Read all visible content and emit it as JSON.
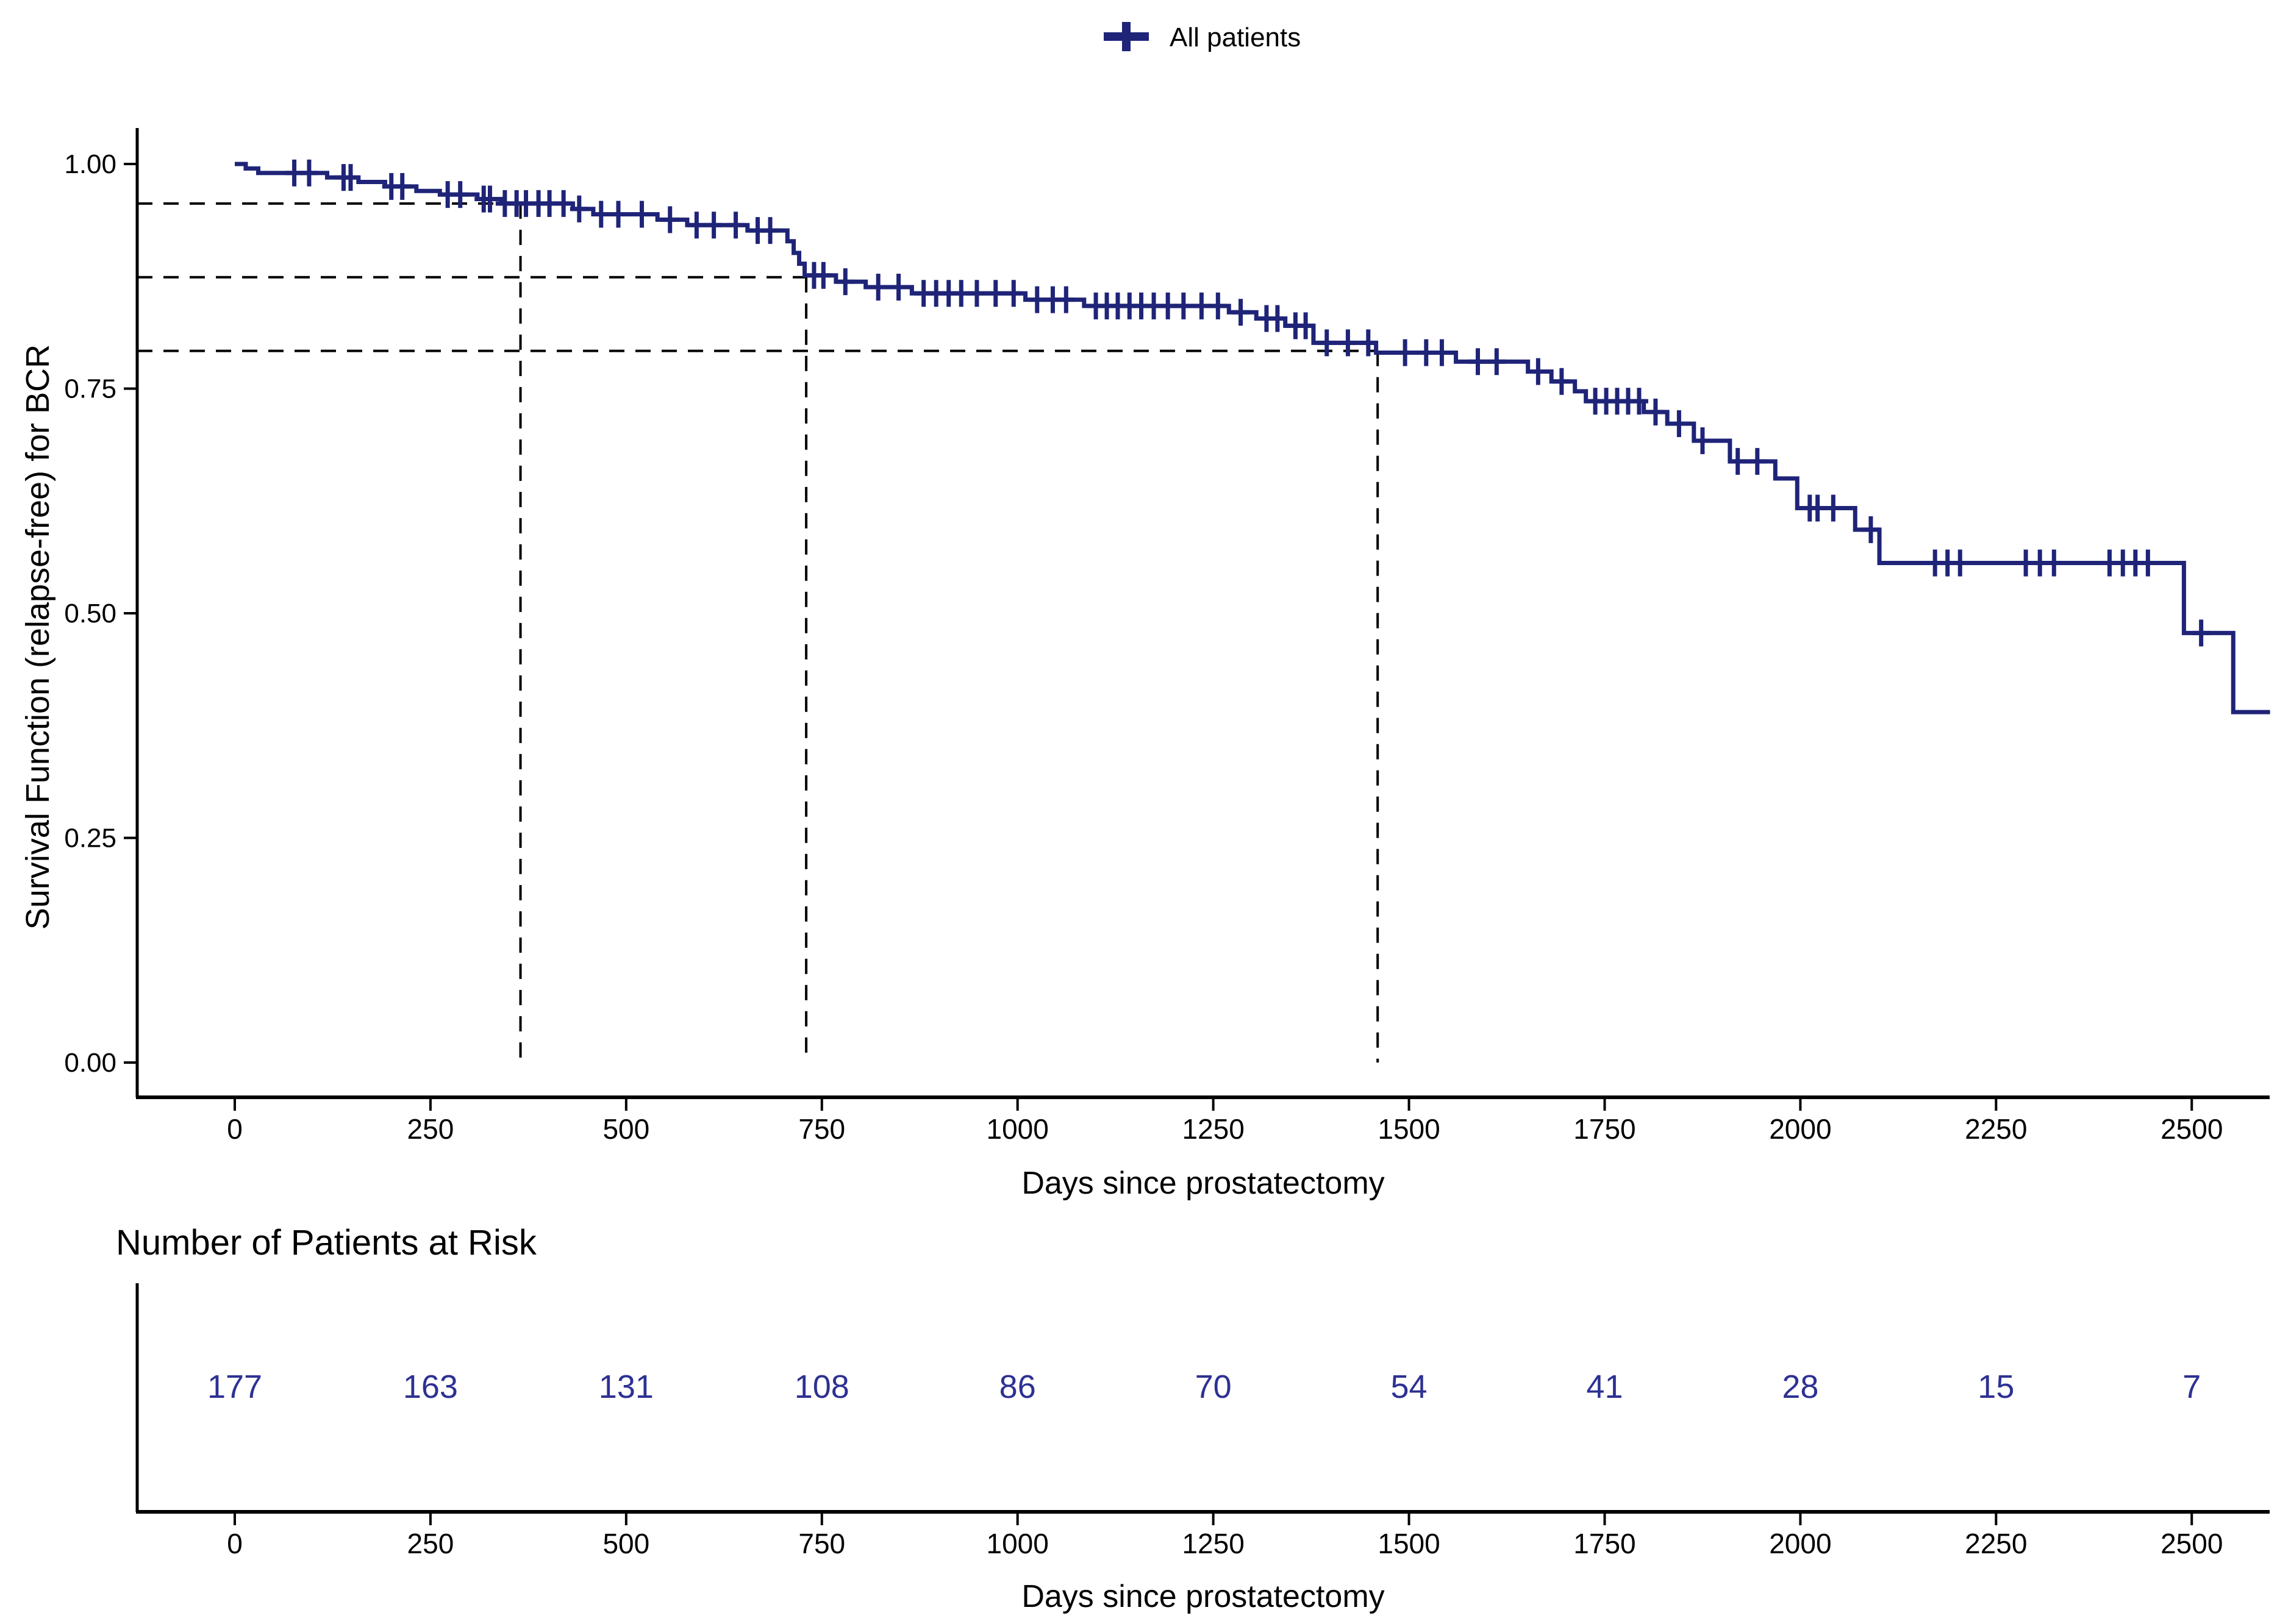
{
  "figure_title": "",
  "colors": {
    "curve": "#1f2478",
    "risk_numbers": "#2d3193",
    "axis": "#000000",
    "tick_text": "#000000",
    "dashed_reference": "#000000",
    "background": "#ffffff",
    "legend_text": "#000000"
  },
  "legend": {
    "marker": "plus-icon",
    "label": "All patients"
  },
  "chart_data": [
    {
      "type": "line",
      "subtype": "kaplan-meier-step-curve",
      "title": "",
      "xlabel": "Days since prostatectomy",
      "ylabel": "Survival Function (relapse-free) for BCR",
      "xlim": [
        0,
        2600
      ],
      "ylim": [
        0.0,
        1.0
      ],
      "grid": "off",
      "legend_position": "top-center",
      "x_ticks": [
        0,
        250,
        500,
        750,
        1000,
        1250,
        1500,
        1750,
        2000,
        2250,
        2500
      ],
      "y_ticks": [
        1.0,
        0.75,
        0.5,
        0.25,
        0.0
      ],
      "y_tick_labels": [
        "1.00",
        "0.75",
        "0.50",
        "0.25",
        "0.00"
      ],
      "series": [
        {
          "name": "All patients",
          "color": "#1f2478",
          "steps": [
            [
              0,
              1.0
            ],
            [
              14,
              0.995
            ],
            [
              30,
              0.99
            ],
            [
              118,
              0.985
            ],
            [
              158,
              0.98
            ],
            [
              192,
              0.975
            ],
            [
              232,
              0.97
            ],
            [
              262,
              0.966
            ],
            [
              310,
              0.961
            ],
            [
              340,
              0.956
            ],
            [
              432,
              0.95
            ],
            [
              458,
              0.944
            ],
            [
              540,
              0.938
            ],
            [
              578,
              0.932
            ],
            [
              655,
              0.926
            ],
            [
              706,
              0.914
            ],
            [
              714,
              0.901
            ],
            [
              721,
              0.889
            ],
            [
              728,
              0.876
            ],
            [
              768,
              0.869
            ],
            [
              806,
              0.863
            ],
            [
              865,
              0.856
            ],
            [
              1010,
              0.849
            ],
            [
              1085,
              0.842
            ],
            [
              1270,
              0.835
            ],
            [
              1305,
              0.828
            ],
            [
              1342,
              0.82
            ],
            [
              1378,
              0.801
            ],
            [
              1458,
              0.79
            ],
            [
              1560,
              0.78
            ],
            [
              1652,
              0.769
            ],
            [
              1682,
              0.758
            ],
            [
              1712,
              0.747
            ],
            [
              1726,
              0.736
            ],
            [
              1800,
              0.724
            ],
            [
              1830,
              0.711
            ],
            [
              1864,
              0.692
            ],
            [
              1910,
              0.669
            ],
            [
              1968,
              0.65
            ],
            [
              1996,
              0.617
            ],
            [
              2070,
              0.593
            ],
            [
              2101,
              0.556
            ],
            [
              2490,
              0.478
            ],
            [
              2553,
              0.39
            ]
          ],
          "end_time": 2600,
          "censor_marks": [
            [
              76,
              0.99
            ],
            [
              95,
              0.99
            ],
            [
              139,
              0.985
            ],
            [
              148,
              0.985
            ],
            [
              200,
              0.975
            ],
            [
              214,
              0.975
            ],
            [
              272,
              0.966
            ],
            [
              288,
              0.966
            ],
            [
              318,
              0.961
            ],
            [
              326,
              0.961
            ],
            [
              345,
              0.956
            ],
            [
              360,
              0.956
            ],
            [
              372,
              0.956
            ],
            [
              388,
              0.956
            ],
            [
              402,
              0.956
            ],
            [
              420,
              0.956
            ],
            [
              440,
              0.95
            ],
            [
              468,
              0.944
            ],
            [
              490,
              0.944
            ],
            [
              520,
              0.944
            ],
            [
              556,
              0.938
            ],
            [
              590,
              0.932
            ],
            [
              612,
              0.932
            ],
            [
              640,
              0.932
            ],
            [
              668,
              0.926
            ],
            [
              684,
              0.926
            ],
            [
              740,
              0.876
            ],
            [
              752,
              0.876
            ],
            [
              780,
              0.869
            ],
            [
              822,
              0.863
            ],
            [
              848,
              0.863
            ],
            [
              880,
              0.856
            ],
            [
              896,
              0.856
            ],
            [
              912,
              0.856
            ],
            [
              928,
              0.856
            ],
            [
              948,
              0.856
            ],
            [
              972,
              0.856
            ],
            [
              995,
              0.856
            ],
            [
              1025,
              0.849
            ],
            [
              1045,
              0.849
            ],
            [
              1062,
              0.849
            ],
            [
              1100,
              0.842
            ],
            [
              1114,
              0.842
            ],
            [
              1128,
              0.842
            ],
            [
              1143,
              0.842
            ],
            [
              1158,
              0.842
            ],
            [
              1174,
              0.842
            ],
            [
              1192,
              0.842
            ],
            [
              1212,
              0.842
            ],
            [
              1235,
              0.842
            ],
            [
              1256,
              0.842
            ],
            [
              1285,
              0.835
            ],
            [
              1318,
              0.828
            ],
            [
              1332,
              0.828
            ],
            [
              1355,
              0.82
            ],
            [
              1368,
              0.82
            ],
            [
              1395,
              0.801
            ],
            [
              1422,
              0.801
            ],
            [
              1448,
              0.801
            ],
            [
              1495,
              0.79
            ],
            [
              1522,
              0.79
            ],
            [
              1542,
              0.79
            ],
            [
              1588,
              0.78
            ],
            [
              1612,
              0.78
            ],
            [
              1665,
              0.769
            ],
            [
              1695,
              0.758
            ],
            [
              1738,
              0.736
            ],
            [
              1752,
              0.736
            ],
            [
              1766,
              0.736
            ],
            [
              1780,
              0.736
            ],
            [
              1794,
              0.736
            ],
            [
              1815,
              0.724
            ],
            [
              1845,
              0.711
            ],
            [
              1875,
              0.692
            ],
            [
              1920,
              0.669
            ],
            [
              1945,
              0.669
            ],
            [
              2012,
              0.617
            ],
            [
              2022,
              0.617
            ],
            [
              2042,
              0.617
            ],
            [
              2090,
              0.593
            ],
            [
              2172,
              0.556
            ],
            [
              2188,
              0.556
            ],
            [
              2204,
              0.556
            ],
            [
              2288,
              0.556
            ],
            [
              2306,
              0.556
            ],
            [
              2324,
              0.556
            ],
            [
              2395,
              0.556
            ],
            [
              2412,
              0.556
            ],
            [
              2428,
              0.556
            ],
            [
              2444,
              0.556
            ],
            [
              2512,
              0.478
            ]
          ]
        }
      ],
      "reference_lines": [
        {
          "time": 365,
          "survival": 0.956
        },
        {
          "time": 730,
          "survival": 0.874
        },
        {
          "time": 1460,
          "survival": 0.792
        }
      ]
    },
    {
      "type": "table",
      "title": "Number of Patients at Risk",
      "xlabel": "Days since prostatectomy",
      "x_ticks": [
        0,
        250,
        500,
        750,
        1000,
        1250,
        1500,
        1750,
        2000,
        2250,
        2500
      ],
      "row_name": "All patients",
      "values": [
        177,
        163,
        131,
        108,
        86,
        70,
        54,
        41,
        28,
        15,
        7
      ]
    }
  ]
}
